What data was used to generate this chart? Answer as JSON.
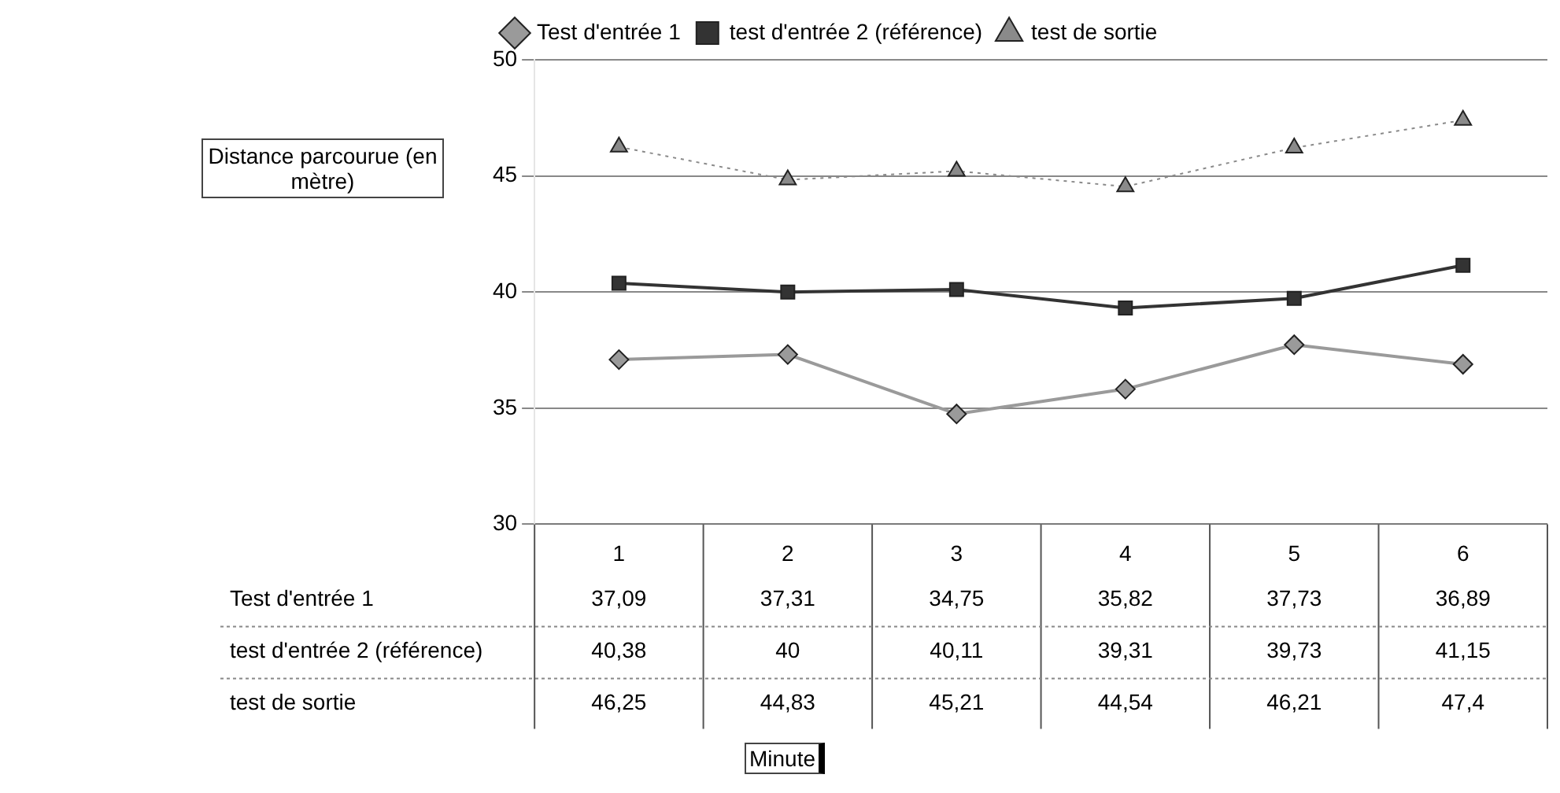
{
  "chart_data": {
    "type": "line",
    "annotations": [
      "Minute"
    ],
    "ylabel": "Distance parcourue (en mètre)",
    "categories": [
      "1",
      "2",
      "3",
      "4",
      "5",
      "6"
    ],
    "series": [
      {
        "name": "Test d'entrée 1",
        "color": "#9a9a9a",
        "marker": "diamond",
        "line_style": "solid",
        "values": [
          37.09,
          37.31,
          34.75,
          35.82,
          37.73,
          36.89
        ],
        "value_labels": [
          "37,09",
          "37,31",
          "34,75",
          "35,82",
          "37,73",
          "36,89"
        ]
      },
      {
        "name": "test d'entrée 2 (référence)",
        "color": "#333333",
        "marker": "square",
        "line_style": "solid",
        "values": [
          40.38,
          40,
          40.11,
          39.31,
          39.73,
          41.15
        ],
        "value_labels": [
          "40,38",
          "40",
          "40,11",
          "39,31",
          "39,73",
          "41,15"
        ]
      },
      {
        "name": "test de sortie",
        "color": "#8a8a8a",
        "marker": "triangle",
        "line_style": "dotted",
        "values": [
          46.25,
          44.83,
          45.21,
          44.54,
          46.21,
          47.4
        ],
        "value_labels": [
          "46,25",
          "44,83",
          "45,21",
          "44,54",
          "46,21",
          "47,4"
        ]
      }
    ],
    "ylim": [
      30,
      50
    ],
    "yticks": [
      30,
      35,
      40,
      45,
      50
    ],
    "grid": "y",
    "legend": "top left"
  }
}
